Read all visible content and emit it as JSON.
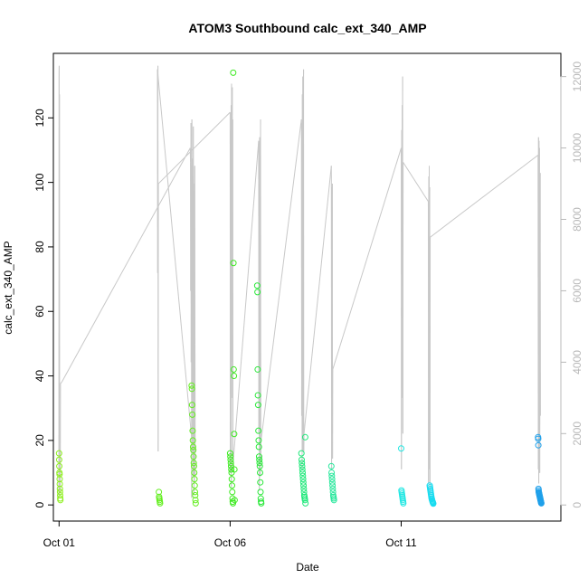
{
  "chart_data": {
    "type": "scatter",
    "title": "ATOM3 Southbound calc_ext_340_AMP",
    "xlabel": "Date",
    "ylabel": "calc_ext_340_AMP",
    "x_is_date": true,
    "xlim": [
      "2023-09-30T20:00",
      "2023-10-15T16:00"
    ],
    "x_ticks": [
      {
        "value": "2023-10-01T00:00",
        "label": "Oct 01"
      },
      {
        "value": "2023-10-06T00:00",
        "label": "Oct 06"
      },
      {
        "value": "2023-10-11T00:00",
        "label": "Oct 11"
      }
    ],
    "ylim": [
      -5,
      140
    ],
    "y_ticks": [
      0,
      20,
      40,
      60,
      80,
      100,
      120
    ],
    "y2lim": [
      -450,
      12650
    ],
    "y2_ticks": [
      0,
      2000,
      4000,
      6000,
      8000,
      10000,
      12000
    ],
    "grid": false,
    "legend": "none",
    "colors": {
      "trace_line": "#c8c8c8",
      "right_axis": "#b8b8b8",
      "left_axis": "#000000"
    },
    "series": [
      {
        "color": "#8ef01e",
        "x": [
          "2023-10-01T00:00",
          "2023-10-01T00:05",
          "2023-10-01T00:10",
          "2023-10-01T00:15",
          "2023-10-01T00:20",
          "2023-10-01T00:25",
          "2023-10-01T00:30",
          "2023-10-01T00:35",
          "2023-10-01T00:40",
          "2023-10-01T00:45",
          "2023-10-01T00:50",
          "2023-10-01T00:55"
        ],
        "values": [
          16,
          14,
          12,
          10,
          9.5,
          8,
          6.5,
          5,
          4,
          3,
          2,
          1.5
        ]
      },
      {
        "color": "#63ee1f",
        "x": [
          "2023-10-03T22:00",
          "2023-10-03T22:10",
          "2023-10-03T22:20",
          "2023-10-03T22:30",
          "2023-10-03T22:40",
          "2023-10-03T22:50",
          "2023-10-04T21:00",
          "2023-10-04T21:10",
          "2023-10-04T21:20",
          "2023-10-04T21:30",
          "2023-10-04T21:40",
          "2023-10-04T21:50",
          "2023-10-04T22:00",
          "2023-10-04T22:10",
          "2023-10-04T22:20",
          "2023-10-04T22:30",
          "2023-10-04T22:40",
          "2023-10-04T22:50",
          "2023-10-04T23:00",
          "2023-10-04T23:10",
          "2023-10-04T23:20",
          "2023-10-04T23:30",
          "2023-10-04T23:40",
          "2023-10-04T23:50"
        ],
        "values": [
          4,
          2.5,
          2,
          1.5,
          1,
          0.5,
          37,
          36,
          31,
          28,
          23,
          20,
          18,
          17,
          15,
          13,
          12,
          10,
          8,
          6,
          4,
          3,
          1.5,
          0.5
        ]
      },
      {
        "color": "#3eea22",
        "x": [
          "2023-10-06T00:00",
          "2023-10-06T00:10",
          "2023-10-06T00:20",
          "2023-10-06T00:30",
          "2023-10-06T00:40",
          "2023-10-06T00:50",
          "2023-10-06T01:00",
          "2023-10-06T01:10",
          "2023-10-06T01:20",
          "2023-10-06T01:30",
          "2023-10-06T01:40",
          "2023-10-06T01:50",
          "2023-10-06T02:00",
          "2023-10-06T02:10",
          "2023-10-06T02:20",
          "2023-10-06T02:30",
          "2023-10-06T02:40",
          "2023-10-06T02:50",
          "2023-10-06T03:00",
          "2023-10-06T03:10"
        ],
        "values": [
          16,
          15,
          14,
          13,
          12,
          11,
          10,
          8,
          6,
          4,
          2,
          1,
          0.5,
          134,
          75,
          42,
          40,
          22,
          11,
          1.5
        ]
      },
      {
        "color": "#2ae83a",
        "x": [
          "2023-10-06T19:00",
          "2023-10-06T19:10",
          "2023-10-06T19:20",
          "2023-10-06T19:30",
          "2023-10-06T19:40",
          "2023-10-06T19:50",
          "2023-10-06T20:00",
          "2023-10-06T20:10",
          "2023-10-06T20:20",
          "2023-10-06T20:30",
          "2023-10-06T20:40",
          "2023-10-06T20:50",
          "2023-10-06T21:00",
          "2023-10-06T21:10",
          "2023-10-06T21:20",
          "2023-10-06T21:30",
          "2023-10-06T21:40",
          "2023-10-06T21:50"
        ],
        "values": [
          68,
          66,
          42,
          34,
          31,
          23,
          20,
          18,
          15,
          14,
          13,
          12,
          10,
          7,
          4,
          2,
          1,
          0.5
        ]
      },
      {
        "color": "#1fe87a",
        "x": [
          "2023-10-08T02:00",
          "2023-10-08T02:10",
          "2023-10-08T02:20",
          "2023-10-08T02:30",
          "2023-10-08T02:40",
          "2023-10-08T02:50",
          "2023-10-08T03:00",
          "2023-10-08T03:10",
          "2023-10-08T03:20",
          "2023-10-08T03:30",
          "2023-10-08T03:40",
          "2023-10-08T03:50",
          "2023-10-08T04:00",
          "2023-10-08T04:10",
          "2023-10-08T04:20",
          "2023-10-08T04:30",
          "2023-10-08T04:40",
          "2023-10-08T04:50"
        ],
        "values": [
          16,
          14,
          13,
          12,
          11,
          10,
          9,
          8,
          7,
          6,
          5,
          4,
          3,
          2.5,
          2,
          1.5,
          21,
          0.5
        ]
      },
      {
        "color": "#28e79c",
        "x": [
          "2023-10-08T23:00",
          "2023-10-08T23:10",
          "2023-10-08T23:20",
          "2023-10-08T23:30",
          "2023-10-08T23:40",
          "2023-10-08T23:50",
          "2023-10-09T00:00",
          "2023-10-09T00:10",
          "2023-10-09T00:20",
          "2023-10-09T00:30",
          "2023-10-09T00:40",
          "2023-10-09T00:50"
        ],
        "values": [
          12,
          10,
          9,
          8,
          7,
          6,
          5,
          4,
          3,
          2.5,
          2,
          1.5
        ]
      },
      {
        "color": "#22e7e3",
        "x": [
          "2023-10-11T00:00",
          "2023-10-11T00:10",
          "2023-10-11T00:20",
          "2023-10-11T00:30",
          "2023-10-11T00:40",
          "2023-10-11T00:50",
          "2023-10-11T01:00",
          "2023-10-11T01:10",
          "2023-10-11T01:20",
          "2023-10-11T01:30"
        ],
        "values": [
          17.5,
          4.5,
          4,
          3.5,
          3,
          2.5,
          2,
          1.5,
          1,
          0.5
        ]
      },
      {
        "color": "#19dcf0",
        "x": [
          "2023-10-11T20:00",
          "2023-10-11T20:10",
          "2023-10-11T20:20",
          "2023-10-11T20:30",
          "2023-10-11T20:40",
          "2023-10-11T20:50",
          "2023-10-11T21:00",
          "2023-10-11T21:10",
          "2023-10-11T21:20",
          "2023-10-11T21:30",
          "2023-10-11T21:40",
          "2023-10-11T21:50",
          "2023-10-11T22:00",
          "2023-10-11T22:10",
          "2023-10-11T22:20",
          "2023-10-11T22:30"
        ],
        "values": [
          6,
          5.5,
          5,
          4.5,
          4,
          3.5,
          3,
          2.5,
          2,
          1.8,
          1.5,
          1.2,
          1,
          0.8,
          0.6,
          0.4
        ]
      },
      {
        "color": "#1fa0ea",
        "x": [
          "2023-10-15T00:00",
          "2023-10-15T00:06",
          "2023-10-15T00:12",
          "2023-10-15T00:18",
          "2023-10-15T00:24",
          "2023-10-15T00:30",
          "2023-10-15T00:36",
          "2023-10-15T00:42",
          "2023-10-15T00:48",
          "2023-10-15T00:54",
          "2023-10-15T01:00",
          "2023-10-15T01:06",
          "2023-10-15T01:12",
          "2023-10-15T01:18",
          "2023-10-15T01:24",
          "2023-10-15T01:30",
          "2023-10-15T01:36",
          "2023-10-15T01:42",
          "2023-10-15T01:48",
          "2023-10-15T01:54",
          "2023-10-15T02:00",
          "2023-10-15T02:06",
          "2023-10-15T02:12",
          "2023-10-15T02:18"
        ],
        "values": [
          21,
          20.5,
          18.5,
          5,
          4.5,
          4,
          3.8,
          3.6,
          3.4,
          3.2,
          3,
          2.8,
          2.6,
          2.4,
          2.2,
          2,
          1.8,
          1.6,
          1.4,
          1.2,
          1,
          0.8,
          0.6,
          0.5
        ]
      }
    ],
    "secondary_series": {
      "axis": "right",
      "style": "line",
      "x": [
        "2023-09-30T23:50",
        "2023-10-01T00:00",
        "2023-10-01T00:05",
        "2023-10-01T00:10",
        "2023-10-01T00:15",
        "2023-10-01T00:20",
        "2023-10-01T00:30",
        "2023-10-01T00:40",
        "2023-10-01T00:50",
        "2023-10-01T01:00",
        "2023-10-01T02:00",
        "2023-10-04T20:00",
        "2023-10-04T20:10",
        "2023-10-04T20:20",
        "2023-10-04T20:30",
        "2023-10-04T20:40",
        "2023-10-04T20:50",
        "2023-10-04T21:00",
        "2023-10-04T21:10",
        "2023-10-04T21:20",
        "2023-10-04T21:30",
        "2023-10-04T21:40",
        "2023-10-04T21:50",
        "2023-10-04T22:00",
        "2023-10-04T22:10",
        "2023-10-04T22:20",
        "2023-10-04T22:30",
        "2023-10-04T22:40",
        "2023-10-04T22:50",
        "2023-10-04T23:00",
        "2023-10-04T23:10",
        "2023-10-04T23:20",
        "2023-10-04T23:30",
        "2023-10-03T21:00",
        "2023-10-03T21:10",
        "2023-10-03T21:20",
        "2023-10-03T21:30",
        "2023-10-03T21:40",
        "2023-10-06T00:00",
        "2023-10-06T00:10",
        "2023-10-06T00:20",
        "2023-10-06T00:30",
        "2023-10-06T00:40",
        "2023-10-06T00:50",
        "2023-10-06T01:00",
        "2023-10-06T01:10",
        "2023-10-06T01:20",
        "2023-10-06T01:30",
        "2023-10-06T01:40",
        "2023-10-06T01:50",
        "2023-10-06T02:00",
        "2023-10-06T02:10",
        "2023-10-06T02:20",
        "2023-10-06T20:00",
        "2023-10-06T20:10",
        "2023-10-06T20:20",
        "2023-10-06T20:30",
        "2023-10-06T20:40",
        "2023-10-06T20:50",
        "2023-10-06T21:00",
        "2023-10-06T21:10",
        "2023-10-06T21:20",
        "2023-10-06T21:30",
        "2023-10-06T21:40",
        "2023-10-08T02:00",
        "2023-10-08T02:10",
        "2023-10-08T02:20",
        "2023-10-08T02:30",
        "2023-10-08T02:40",
        "2023-10-08T02:50",
        "2023-10-08T03:00",
        "2023-10-08T03:10",
        "2023-10-08T03:20",
        "2023-10-08T03:30",
        "2023-10-08T03:40",
        "2023-10-08T03:50",
        "2023-10-08T23:00",
        "2023-10-08T23:10",
        "2023-10-08T23:20",
        "2023-10-08T23:30",
        "2023-10-08T23:40",
        "2023-10-08T23:50",
        "2023-10-09T00:00",
        "2023-10-11T00:00",
        "2023-10-11T00:10",
        "2023-10-11T00:20",
        "2023-10-11T00:30",
        "2023-10-11T00:40",
        "2023-10-11T00:50",
        "2023-10-11T01:00",
        "2023-10-11T01:10",
        "2023-10-11T01:20",
        "2023-10-11T19:00",
        "2023-10-11T19:10",
        "2023-10-11T19:20",
        "2023-10-11T19:30",
        "2023-10-11T19:40",
        "2023-10-11T19:50",
        "2023-10-11T20:00",
        "2023-10-11T20:10",
        "2023-10-11T20:20",
        "2023-10-15T00:00",
        "2023-10-15T00:10",
        "2023-10-15T00:20",
        "2023-10-15T00:30",
        "2023-10-15T00:40",
        "2023-10-15T00:50",
        "2023-10-15T01:00",
        "2023-10-15T01:10",
        "2023-10-15T01:20",
        "2023-10-15T01:30",
        "2023-10-15T01:40"
      ],
      "values": [
        200,
        12100,
        12300,
        3000,
        11500,
        2500,
        300,
        800,
        400,
        3400,
        3450,
        10000,
        9600,
        6000,
        10700,
        4000,
        9500,
        200,
        10800,
        3000,
        9700,
        1500,
        9200,
        800,
        10600,
        5000,
        9000,
        300,
        8800,
        600,
        9500,
        4500,
        800,
        12200,
        6500,
        12300,
        1500,
        9000,
        11000,
        900,
        10500,
        1000,
        11200,
        500,
        11800,
        3000,
        9600,
        11700,
        4000,
        10800,
        1000,
        1100,
        1300,
        10200,
        2000,
        9000,
        400,
        10300,
        1500,
        9500,
        800,
        10800,
        1200,
        1800,
        10800,
        2500,
        10700,
        1000,
        11500,
        6500,
        12000,
        1500,
        9000,
        12200,
        1500,
        2000,
        9500,
        1000,
        8900,
        2500,
        9000,
        1300,
        3800,
        10000,
        1000,
        10500,
        3000,
        11200,
        8500,
        12000,
        2000,
        9600,
        8500,
        600,
        9200,
        1500,
        9500,
        1000,
        8900,
        300,
        7500,
        9800,
        1000,
        10300,
        600,
        10200,
        1800,
        10000,
        900,
        5500,
        9300,
        2500
      ]
    }
  }
}
